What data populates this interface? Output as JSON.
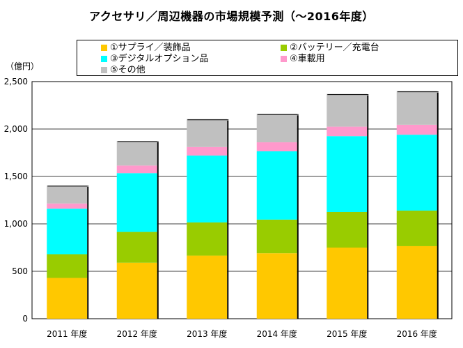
{
  "chart_data": {
    "type": "bar",
    "stacked": true,
    "title": "アクセサリ／周辺機器の市場規模予測（～2016年度）",
    "unit_label": "（億円）",
    "categories": [
      "2011 年度",
      "2012 年度",
      "2013 年度",
      "2014 年度",
      "2015 年度",
      "2016 年度"
    ],
    "series": [
      {
        "name": "①サプライ／装飾品",
        "color": "#FFC800",
        "values": [
          430,
          590,
          665,
          690,
          750,
          765
        ]
      },
      {
        "name": "②バッテリー／充電台",
        "color": "#99CC00",
        "values": [
          250,
          325,
          350,
          355,
          375,
          375
        ]
      },
      {
        "name": "③デジタルオプション品",
        "color": "#00FFFF",
        "values": [
          480,
          620,
          705,
          720,
          800,
          800
        ]
      },
      {
        "name": "④車載用",
        "color": "#FF99CC",
        "values": [
          55,
          80,
          90,
          95,
          100,
          105
        ]
      },
      {
        "name": "⑤その他",
        "color": "#C0C0C0",
        "values": [
          190,
          260,
          295,
          300,
          345,
          355
        ]
      }
    ],
    "ylim": [
      0,
      2500
    ],
    "yticks": [
      0,
      500,
      1000,
      1500,
      2000,
      2500
    ],
    "ytick_labels": [
      "0",
      "500",
      "1,000",
      "1,500",
      "2,000",
      "2,500"
    ],
    "grid": true,
    "legend_position": "top"
  }
}
